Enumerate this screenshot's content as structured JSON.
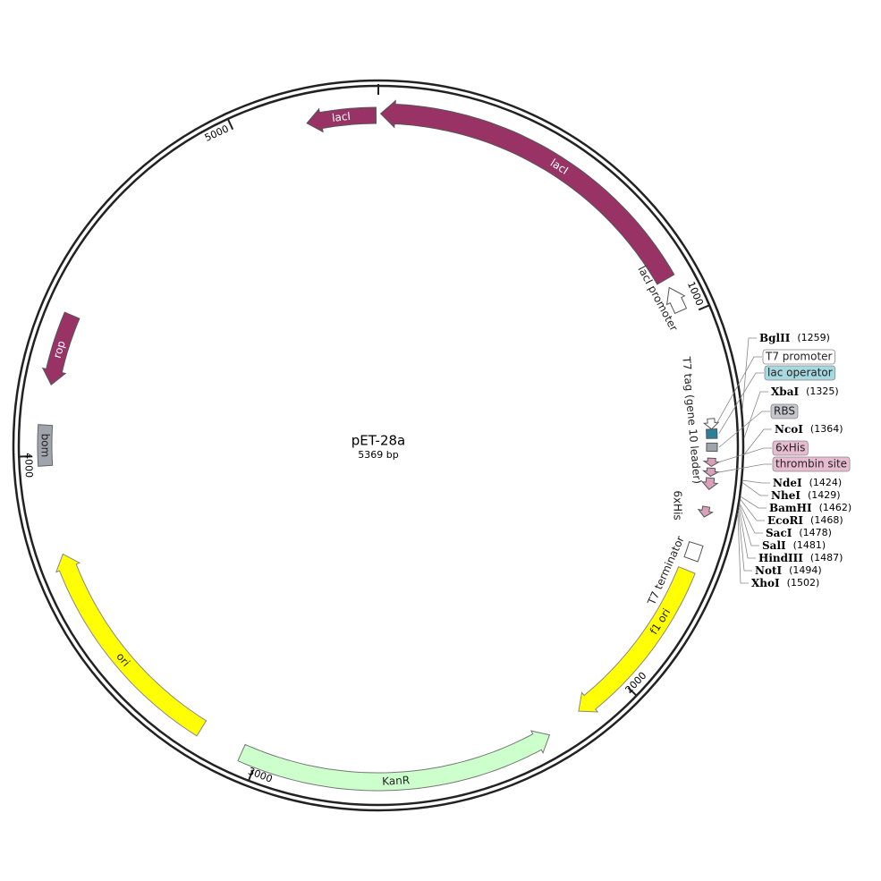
{
  "map": {
    "name": "pET-28a",
    "length": "5369 bp",
    "ticks": [
      1000,
      2000,
      3000,
      4000,
      5000
    ]
  },
  "features": [
    {
      "label": "lacI"
    },
    {
      "label": "lacI"
    },
    {
      "label": "lacI promoter"
    },
    {
      "label": "T7 tag (gene 10 leader)"
    },
    {
      "label": "6xHis"
    },
    {
      "label": "T7 terminator"
    },
    {
      "label": "f1 ori"
    },
    {
      "label": "KanR"
    },
    {
      "label": "ori"
    },
    {
      "label": "bom"
    },
    {
      "label": "rop"
    }
  ],
  "callouts": [
    {
      "label": "BglII",
      "position": "(1259)"
    },
    {
      "label": "T7 promoter"
    },
    {
      "label": "lac operator"
    },
    {
      "label": "XbaI",
      "position": "(1325)"
    },
    {
      "label": "RBS"
    },
    {
      "label": "NcoI",
      "position": "(1364)"
    },
    {
      "label": "6xHis"
    },
    {
      "label": "thrombin site"
    },
    {
      "label": "NdeI",
      "position": "(1424)"
    },
    {
      "label": "NheI",
      "position": "(1429)"
    },
    {
      "label": "BamHI",
      "position": "(1462)"
    },
    {
      "label": "EcoRI",
      "position": "(1468)"
    },
    {
      "label": "SacI",
      "position": "(1478)"
    },
    {
      "label": "SalI",
      "position": "(1481)"
    },
    {
      "label": "HindIII",
      "position": "(1487)"
    },
    {
      "label": "NotI",
      "position": "(1494)"
    },
    {
      "label": "XhoI",
      "position": "(1502)"
    }
  ]
}
